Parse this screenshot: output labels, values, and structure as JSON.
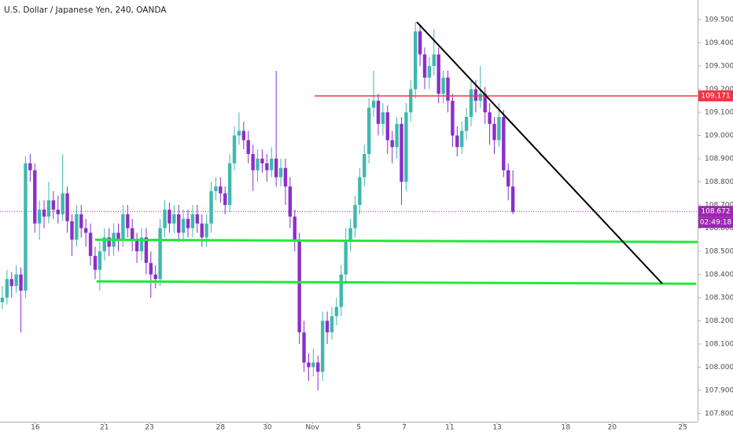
{
  "chart_data": {
    "type": "candlestick",
    "title": "U.S. Dollar / Japanese Yen, 240, OANDA",
    "up_color": "#3fb8af",
    "down_color": "#8b2fc9",
    "candles": [
      [
        108.28,
        108.35,
        108.25,
        108.3
      ],
      [
        108.3,
        108.42,
        108.27,
        108.38
      ],
      [
        108.38,
        108.41,
        108.3,
        108.35
      ],
      [
        108.35,
        108.44,
        108.32,
        108.4
      ],
      [
        108.4,
        108.43,
        108.15,
        108.33
      ],
      [
        108.33,
        108.91,
        108.3,
        108.88
      ],
      [
        108.88,
        108.92,
        108.8,
        108.85
      ],
      [
        108.85,
        108.88,
        108.58,
        108.62
      ],
      [
        108.62,
        108.72,
        108.55,
        108.68
      ],
      [
        108.68,
        108.72,
        108.6,
        108.65
      ],
      [
        108.65,
        108.8,
        108.62,
        108.72
      ],
      [
        108.72,
        108.76,
        108.64,
        108.68
      ],
      [
        108.68,
        108.74,
        108.62,
        108.66
      ],
      [
        108.66,
        108.92,
        108.63,
        108.75
      ],
      [
        108.75,
        108.78,
        108.58,
        108.63
      ],
      [
        108.63,
        108.66,
        108.48,
        108.55
      ],
      [
        108.55,
        108.7,
        108.52,
        108.66
      ],
      [
        108.66,
        108.7,
        108.56,
        108.6
      ],
      [
        108.6,
        108.64,
        108.52,
        108.58
      ],
      [
        108.58,
        108.62,
        108.44,
        108.48
      ],
      [
        108.48,
        108.52,
        108.38,
        108.42
      ],
      [
        108.42,
        108.54,
        108.33,
        108.5
      ],
      [
        108.5,
        108.6,
        108.46,
        108.56
      ],
      [
        108.56,
        108.6,
        108.48,
        108.52
      ],
      [
        108.52,
        108.62,
        108.48,
        108.58
      ],
      [
        108.58,
        108.62,
        108.5,
        108.55
      ],
      [
        108.55,
        108.7,
        108.52,
        108.66
      ],
      [
        108.66,
        108.7,
        108.56,
        108.6
      ],
      [
        108.6,
        108.64,
        108.5,
        108.55
      ],
      [
        108.55,
        108.58,
        108.45,
        108.5
      ],
      [
        108.5,
        108.6,
        108.46,
        108.56
      ],
      [
        108.56,
        108.6,
        108.4,
        108.45
      ],
      [
        108.45,
        108.5,
        108.3,
        108.4
      ],
      [
        108.4,
        108.44,
        108.34,
        108.38
      ],
      [
        108.38,
        108.64,
        108.35,
        108.6
      ],
      [
        108.6,
        108.72,
        108.56,
        108.68
      ],
      [
        108.68,
        108.71,
        108.58,
        108.62
      ],
      [
        108.62,
        108.7,
        108.58,
        108.66
      ],
      [
        108.66,
        108.7,
        108.54,
        108.58
      ],
      [
        108.58,
        108.68,
        108.54,
        108.64
      ],
      [
        108.64,
        108.68,
        108.56,
        108.6
      ],
      [
        108.6,
        108.7,
        108.56,
        108.66
      ],
      [
        108.66,
        108.7,
        108.58,
        108.62
      ],
      [
        108.62,
        108.66,
        108.52,
        108.56
      ],
      [
        108.56,
        108.66,
        108.52,
        108.62
      ],
      [
        108.62,
        108.8,
        108.58,
        108.76
      ],
      [
        108.76,
        108.82,
        108.72,
        108.78
      ],
      [
        108.78,
        108.82,
        108.71,
        108.75
      ],
      [
        108.75,
        108.78,
        108.66,
        108.7
      ],
      [
        108.7,
        108.92,
        108.67,
        108.88
      ],
      [
        108.88,
        109.04,
        108.85,
        109.0
      ],
      [
        109.0,
        109.1,
        108.96,
        109.02
      ],
      [
        109.02,
        109.06,
        108.94,
        108.98
      ],
      [
        108.98,
        109.02,
        108.88,
        108.92
      ],
      [
        108.92,
        108.96,
        108.76,
        108.85
      ],
      [
        108.85,
        108.94,
        108.8,
        108.9
      ],
      [
        108.9,
        108.94,
        108.84,
        108.88
      ],
      [
        108.88,
        108.92,
        108.8,
        108.85
      ],
      [
        108.85,
        108.95,
        108.82,
        108.9
      ],
      [
        108.9,
        109.28,
        108.78,
        108.82
      ],
      [
        108.82,
        108.9,
        108.78,
        108.86
      ],
      [
        108.86,
        108.9,
        108.7,
        108.78
      ],
      [
        108.78,
        108.82,
        108.6,
        108.65
      ],
      [
        108.65,
        108.68,
        108.5,
        108.55
      ],
      [
        108.55,
        108.58,
        108.1,
        108.15
      ],
      [
        108.15,
        108.2,
        107.98,
        108.02
      ],
      [
        108.02,
        108.06,
        107.94,
        108.0
      ],
      [
        108.0,
        108.08,
        107.96,
        108.02
      ],
      [
        108.02,
        108.05,
        107.9,
        107.98
      ],
      [
        107.98,
        108.24,
        107.94,
        108.2
      ],
      [
        108.2,
        108.24,
        108.1,
        108.15
      ],
      [
        108.15,
        108.26,
        108.12,
        108.22
      ],
      [
        108.22,
        108.3,
        108.18,
        108.26
      ],
      [
        108.26,
        108.44,
        108.22,
        108.4
      ],
      [
        108.4,
        108.6,
        108.36,
        108.55
      ],
      [
        108.55,
        108.64,
        108.5,
        108.6
      ],
      [
        108.6,
        108.74,
        108.56,
        108.7
      ],
      [
        108.7,
        108.86,
        108.66,
        108.82
      ],
      [
        108.82,
        108.96,
        108.78,
        108.92
      ],
      [
        108.92,
        109.16,
        108.88,
        109.12
      ],
      [
        109.12,
        109.28,
        109.08,
        109.15
      ],
      [
        109.15,
        109.18,
        109.0,
        109.05
      ],
      [
        109.05,
        109.14,
        109.0,
        109.1
      ],
      [
        109.1,
        109.13,
        108.92,
        108.98
      ],
      [
        108.98,
        109.02,
        108.88,
        108.95
      ],
      [
        108.95,
        109.08,
        108.9,
        109.05
      ],
      [
        109.05,
        109.08,
        108.7,
        108.8
      ],
      [
        108.8,
        109.14,
        108.76,
        109.1
      ],
      [
        109.1,
        109.24,
        109.06,
        109.2
      ],
      [
        109.2,
        109.49,
        109.16,
        109.45
      ],
      [
        109.45,
        109.48,
        109.3,
        109.35
      ],
      [
        109.35,
        109.38,
        109.2,
        109.25
      ],
      [
        109.25,
        109.34,
        109.2,
        109.3
      ],
      [
        109.3,
        109.46,
        109.26,
        109.35
      ],
      [
        109.35,
        109.38,
        109.14,
        109.18
      ],
      [
        109.18,
        109.28,
        109.14,
        109.25
      ],
      [
        109.25,
        109.28,
        109.1,
        109.15
      ],
      [
        109.15,
        109.18,
        108.95,
        109.0
      ],
      [
        109.0,
        109.04,
        108.91,
        108.95
      ],
      [
        108.95,
        109.06,
        108.92,
        109.02
      ],
      [
        109.02,
        109.12,
        108.98,
        109.08
      ],
      [
        109.08,
        109.24,
        109.04,
        109.2
      ],
      [
        109.2,
        109.24,
        109.1,
        109.15
      ],
      [
        109.15,
        109.3,
        109.12,
        109.18
      ],
      [
        109.18,
        109.21,
        109.05,
        109.1
      ],
      [
        109.1,
        109.14,
        108.96,
        109.05
      ],
      [
        109.05,
        109.08,
        108.92,
        108.98
      ],
      [
        108.98,
        109.14,
        108.95,
        109.08
      ],
      [
        109.08,
        109.11,
        108.82,
        108.85
      ],
      [
        108.85,
        108.88,
        108.72,
        108.78
      ],
      [
        108.78,
        108.85,
        108.66,
        108.67
      ]
    ],
    "xlim": [
      -0.5,
      149.8
    ],
    "xticks": [
      {
        "value": 7.1,
        "label": "16"
      },
      {
        "value": 22.0,
        "label": "21"
      },
      {
        "value": 31.7,
        "label": "23"
      },
      {
        "value": 47.0,
        "label": "28"
      },
      {
        "value": 57.1,
        "label": "30"
      },
      {
        "value": 66.8,
        "label": "Nov"
      },
      {
        "value": 76.8,
        "label": "5"
      },
      {
        "value": 86.6,
        "label": "7"
      },
      {
        "value": 96.4,
        "label": "11"
      },
      {
        "value": 106.6,
        "label": "13"
      },
      {
        "value": 121.4,
        "label": "18"
      },
      {
        "value": 131.4,
        "label": "20"
      },
      {
        "value": 146.6,
        "label": "25"
      }
    ],
    "ylim": [
      107.764,
      109.585
    ],
    "yticks": [
      {
        "value": 107.8,
        "label": "107.800"
      },
      {
        "value": 107.9,
        "label": "107.900"
      },
      {
        "value": 108.0,
        "label": "108.000"
      },
      {
        "value": 108.1,
        "label": "108.100"
      },
      {
        "value": 108.2,
        "label": "108.200"
      },
      {
        "value": 108.3,
        "label": "108.300"
      },
      {
        "value": 108.4,
        "label": "108.400"
      },
      {
        "value": 108.5,
        "label": "108.500"
      },
      {
        "value": 108.6,
        "label": "108.600"
      },
      {
        "value": 108.7,
        "label": "108.700"
      },
      {
        "value": 108.8,
        "label": "108.800"
      },
      {
        "value": 108.9,
        "label": "108.900"
      },
      {
        "value": 109.0,
        "label": "109.000"
      },
      {
        "value": 109.1,
        "label": "109.100"
      },
      {
        "value": 109.2,
        "label": "109.200"
      },
      {
        "value": 109.3,
        "label": "109.300"
      },
      {
        "value": 109.4,
        "label": "109.400"
      },
      {
        "value": 109.5,
        "label": "109.500"
      }
    ],
    "drawings": [
      {
        "color": "#f23645",
        "width": 1.5,
        "x": [
          67.3,
          149.8
        ],
        "y": [
          109.171,
          109.171
        ]
      },
      {
        "color": "#22e83a",
        "width": 3,
        "x": [
          20.0,
          149.8
        ],
        "y": [
          108.55,
          108.54
        ]
      },
      {
        "color": "#22e83a",
        "width": 3,
        "x": [
          20.3,
          149.5
        ],
        "y": [
          108.37,
          108.36
        ]
      },
      {
        "color": "#000000",
        "width": 2,
        "x": [
          89.3,
          142.2
        ],
        "y": [
          109.49,
          108.36
        ]
      }
    ],
    "price_line": {
      "value": 108.672,
      "color": "#9c27b0"
    },
    "price_labels": [
      {
        "value": 109.171,
        "label": "109.171",
        "color": "#f23645"
      },
      {
        "value": 108.672,
        "label": "108.672",
        "timer": "02:49:18",
        "color": "#9c27b0"
      }
    ]
  }
}
